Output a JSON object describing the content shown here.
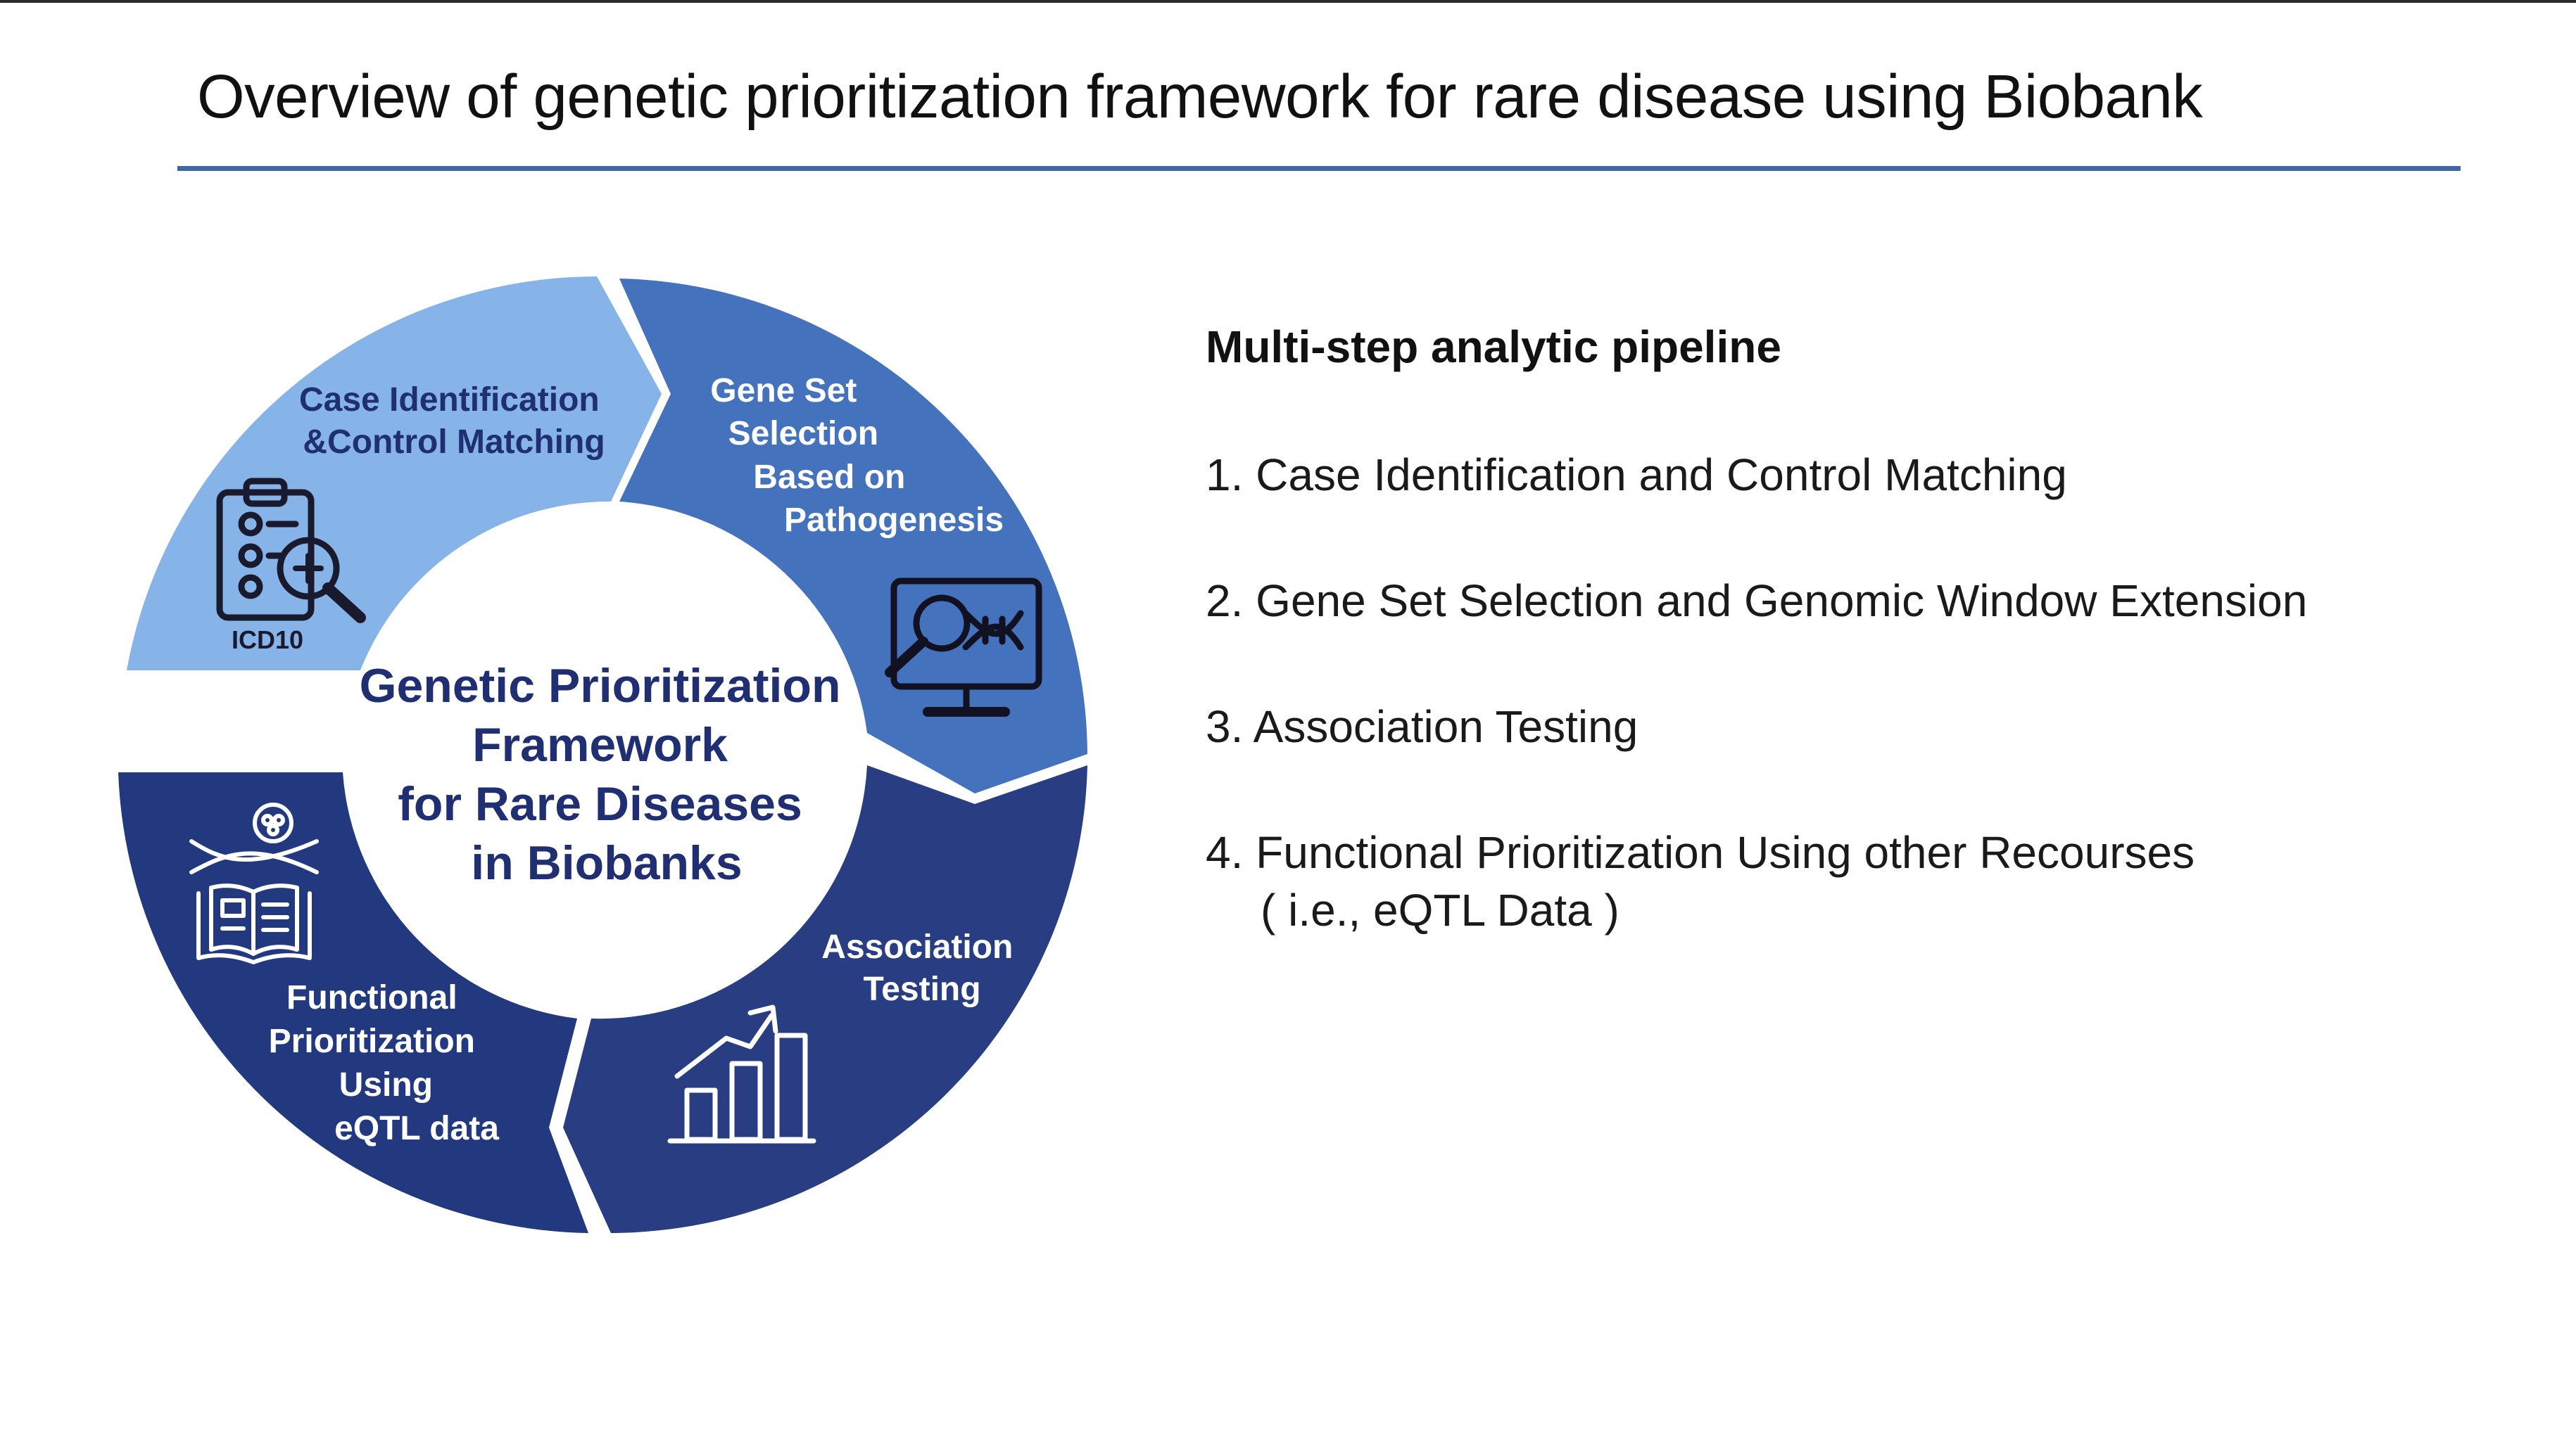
{
  "slide": {
    "title": "Overview of genetic prioritization framework for rare disease using Biobank"
  },
  "cycle": {
    "center_lines": [
      "Genetic Prioritization",
      "Framework",
      "for Rare Diseases",
      "in Biobanks"
    ],
    "segments": [
      {
        "lines": [
          "Case Identification",
          "&Control Matching"
        ],
        "icon": "clipboard-checklist-magnifier-icon",
        "icon_caption": "ICD10",
        "color": "#86b4e8",
        "text_color": "#1f2f72"
      },
      {
        "lines": [
          "Gene Set",
          "Selection",
          "Based on",
          "Pathogenesis"
        ],
        "icon": "monitor-dna-magnifier-icon",
        "color": "#4572bd",
        "text_color": "#ffffff"
      },
      {
        "lines": [
          "Association",
          "Testing"
        ],
        "icon": "rising-bar-chart-icon",
        "color": "#283d82",
        "text_color": "#ffffff"
      },
      {
        "lines": [
          "Functional",
          "Prioritization",
          "Using",
          "eQTL data"
        ],
        "icon": "dna-book-icon",
        "color": "#23397f",
        "text_color": "#ffffff"
      }
    ]
  },
  "pipeline": {
    "heading": "Multi-step analytic pipeline",
    "steps": [
      {
        "number": "1.",
        "text": "Case Identification and Control Matching",
        "sub": ""
      },
      {
        "number": "2.",
        "text": "Gene Set Selection and Genomic Window Extension",
        "sub": ""
      },
      {
        "number": "3.",
        "text": "Association Testing",
        "sub": ""
      },
      {
        "number": "4.",
        "text": "Functional Prioritization Using other Recourses",
        "sub": "( i.e., eQTL Data )"
      }
    ]
  }
}
